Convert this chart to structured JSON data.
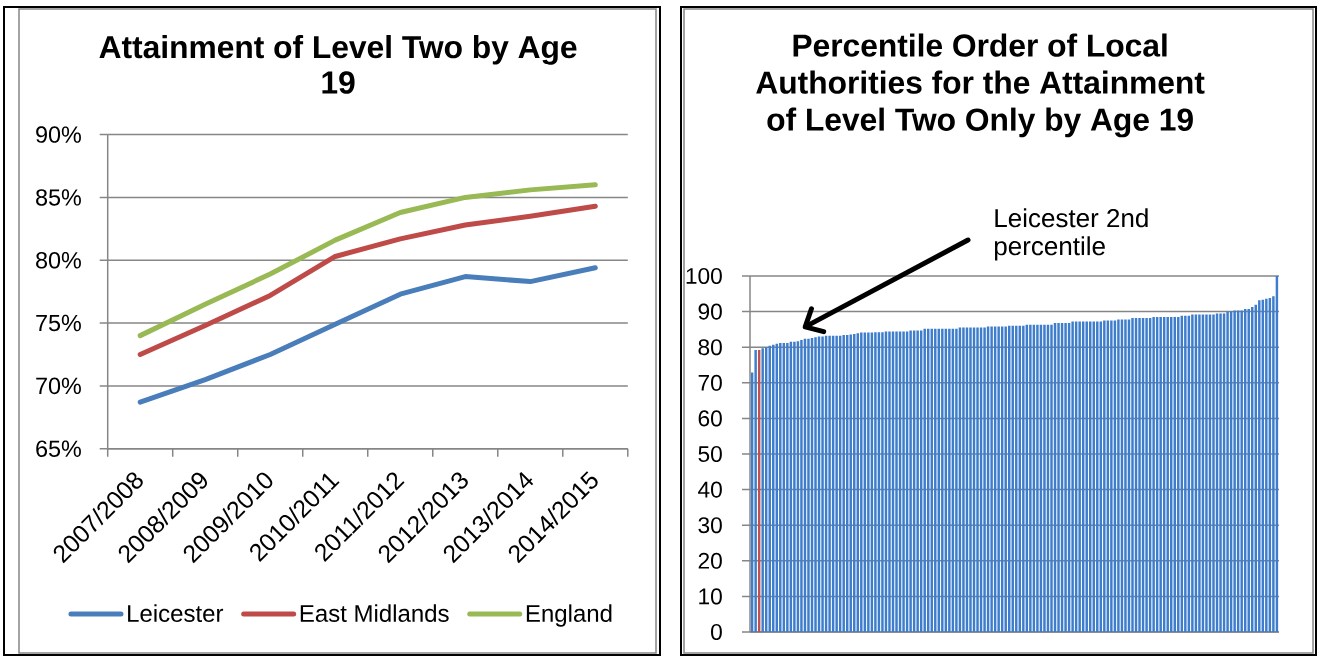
{
  "chart_data": [
    {
      "type": "line",
      "title": "Attainment of Level Two by Age 19",
      "categories": [
        "2007/2008",
        "2008/2009",
        "2009/2010",
        "2010/2011",
        "2011/2012",
        "2012/2013",
        "2013/2014",
        "2014/2015"
      ],
      "series": [
        {
          "name": "Leicester",
          "color": "#4a7ebb",
          "values": [
            68.7,
            70.5,
            72.5,
            74.9,
            77.3,
            78.7,
            78.3,
            79.4
          ]
        },
        {
          "name": "East Midlands",
          "color": "#be4b48",
          "values": [
            72.5,
            74.8,
            77.2,
            80.3,
            81.7,
            82.8,
            83.5,
            84.3
          ]
        },
        {
          "name": "England",
          "color": "#98b954",
          "values": [
            74.0,
            76.5,
            78.9,
            81.6,
            83.8,
            85.0,
            85.6,
            86.0
          ]
        }
      ],
      "ylim": [
        65,
        90
      ],
      "yticks": [
        {
          "value": 65,
          "label": "65%"
        },
        {
          "value": 70,
          "label": "70%"
        },
        {
          "value": 75,
          "label": "75%"
        },
        {
          "value": 80,
          "label": "80%"
        },
        {
          "value": 85,
          "label": "85%"
        },
        {
          "value": 90,
          "label": "90%"
        }
      ],
      "grid": "y",
      "legend": "bottom",
      "marker": "none",
      "line_style": "solid"
    },
    {
      "type": "bar",
      "title": "Percentile Order of Local Authorities for the Attainment of Level Two Only by Age 19",
      "categories": [
        null,
        null,
        null,
        null,
        null,
        null,
        null,
        null,
        null,
        null,
        null,
        null,
        null,
        null,
        null,
        null,
        null,
        null,
        null,
        null,
        null,
        null,
        null,
        null,
        null,
        null,
        null,
        null,
        null,
        null,
        null,
        null,
        null,
        null,
        null,
        null,
        null,
        null,
        null,
        null,
        null,
        null,
        null,
        null,
        null,
        null,
        null,
        null,
        null,
        null,
        null,
        null,
        null,
        null,
        null,
        null,
        null,
        null,
        null,
        null,
        null,
        null,
        null,
        null,
        null,
        null,
        null,
        null,
        null,
        null,
        null,
        null,
        null,
        null,
        null,
        null,
        null,
        null,
        null,
        null,
        null,
        null,
        null,
        null,
        null,
        null,
        null,
        null,
        null,
        null,
        null,
        null,
        null,
        null,
        null,
        null,
        null,
        null,
        null,
        null,
        null,
        null,
        null,
        null,
        null,
        null,
        null,
        null,
        null,
        null,
        null,
        null,
        null,
        null,
        null,
        null,
        null,
        null,
        null,
        null,
        null,
        null,
        null,
        null,
        null,
        null,
        null,
        null,
        null,
        null,
        null,
        null,
        null,
        null,
        null,
        null,
        null,
        null,
        null,
        null,
        null,
        null,
        null,
        null,
        null,
        null,
        null,
        null,
        null,
        null
      ],
      "values": [
        72.9,
        79.2,
        79.2,
        79.7,
        80.0,
        80.4,
        80.7,
        81.0,
        81.2,
        81.2,
        81.2,
        81.5,
        81.5,
        81.7,
        82.0,
        82.4,
        82.4,
        82.6,
        82.8,
        83.0,
        83.0,
        83.2,
        83.2,
        83.2,
        83.2,
        83.2,
        83.4,
        83.4,
        83.6,
        83.7,
        83.9,
        84.1,
        84.1,
        84.1,
        84.1,
        84.2,
        84.2,
        84.2,
        84.4,
        84.4,
        84.4,
        84.4,
        84.4,
        84.4,
        84.4,
        84.7,
        84.7,
        84.7,
        84.7,
        85.2,
        85.2,
        85.2,
        85.2,
        85.2,
        85.2,
        85.2,
        85.2,
        85.2,
        85.2,
        85.5,
        85.5,
        85.5,
        85.5,
        85.5,
        85.5,
        85.5,
        85.5,
        85.8,
        85.8,
        85.8,
        85.8,
        85.8,
        85.8,
        86.0,
        86.0,
        86.0,
        86.0,
        86.0,
        86.3,
        86.3,
        86.3,
        86.3,
        86.3,
        86.3,
        86.3,
        86.3,
        86.8,
        86.8,
        86.8,
        86.8,
        86.8,
        87.2,
        87.2,
        87.2,
        87.2,
        87.2,
        87.2,
        87.2,
        87.2,
        87.2,
        87.5,
        87.5,
        87.5,
        87.5,
        87.8,
        87.8,
        87.8,
        87.8,
        88.2,
        88.2,
        88.2,
        88.2,
        88.2,
        88.2,
        88.5,
        88.5,
        88.5,
        88.5,
        88.5,
        88.5,
        88.5,
        88.5,
        88.8,
        88.8,
        88.8,
        89.2,
        89.2,
        89.2,
        89.2,
        89.2,
        89.2,
        89.2,
        89.5,
        89.5,
        89.5,
        90.0,
        90.0,
        90.3,
        90.3,
        90.3,
        90.7,
        90.7,
        91.3,
        91.9,
        93.2,
        93.3,
        93.6,
        93.8,
        94.3,
        100
      ],
      "colors": [
        "#3d7dcc",
        "#3d7dcc",
        "#c0504d",
        "#3d7dcc",
        "#3d7dcc",
        "#3d7dcc",
        "#3d7dcc",
        "#3d7dcc",
        "#3d7dcc",
        "#3d7dcc",
        "#3d7dcc",
        "#3d7dcc",
        "#3d7dcc",
        "#3d7dcc",
        "#3d7dcc",
        "#3d7dcc",
        "#3d7dcc",
        "#3d7dcc",
        "#3d7dcc",
        "#3d7dcc",
        "#3d7dcc",
        "#3d7dcc",
        "#3d7dcc",
        "#3d7dcc",
        "#3d7dcc",
        "#3d7dcc",
        "#3d7dcc",
        "#3d7dcc",
        "#3d7dcc",
        "#3d7dcc",
        "#3d7dcc",
        "#3d7dcc",
        "#3d7dcc",
        "#3d7dcc",
        "#3d7dcc",
        "#3d7dcc",
        "#3d7dcc",
        "#3d7dcc",
        "#3d7dcc",
        "#3d7dcc",
        "#3d7dcc",
        "#3d7dcc",
        "#3d7dcc",
        "#3d7dcc",
        "#3d7dcc",
        "#3d7dcc",
        "#3d7dcc",
        "#3d7dcc",
        "#3d7dcc",
        "#3d7dcc",
        "#3d7dcc",
        "#3d7dcc",
        "#3d7dcc",
        "#3d7dcc",
        "#3d7dcc",
        "#3d7dcc",
        "#3d7dcc",
        "#3d7dcc",
        "#3d7dcc",
        "#3d7dcc",
        "#3d7dcc",
        "#3d7dcc",
        "#3d7dcc",
        "#3d7dcc",
        "#3d7dcc",
        "#3d7dcc",
        "#3d7dcc",
        "#3d7dcc",
        "#3d7dcc",
        "#3d7dcc",
        "#3d7dcc",
        "#3d7dcc",
        "#3d7dcc",
        "#3d7dcc",
        "#3d7dcc",
        "#3d7dcc",
        "#3d7dcc",
        "#3d7dcc",
        "#3d7dcc",
        "#3d7dcc",
        "#3d7dcc",
        "#3d7dcc",
        "#3d7dcc",
        "#3d7dcc",
        "#3d7dcc",
        "#3d7dcc",
        "#3d7dcc",
        "#3d7dcc",
        "#3d7dcc",
        "#3d7dcc",
        "#3d7dcc",
        "#3d7dcc",
        "#3d7dcc",
        "#3d7dcc",
        "#3d7dcc",
        "#3d7dcc",
        "#3d7dcc",
        "#3d7dcc",
        "#3d7dcc",
        "#3d7dcc",
        "#3d7dcc",
        "#3d7dcc",
        "#3d7dcc",
        "#3d7dcc",
        "#3d7dcc",
        "#3d7dcc",
        "#3d7dcc",
        "#3d7dcc",
        "#3d7dcc",
        "#3d7dcc",
        "#3d7dcc",
        "#3d7dcc",
        "#3d7dcc",
        "#3d7dcc",
        "#3d7dcc",
        "#3d7dcc",
        "#3d7dcc",
        "#3d7dcc",
        "#3d7dcc",
        "#3d7dcc",
        "#3d7dcc",
        "#3d7dcc",
        "#3d7dcc",
        "#3d7dcc",
        "#3d7dcc",
        "#3d7dcc",
        "#3d7dcc",
        "#3d7dcc",
        "#3d7dcc",
        "#3d7dcc",
        "#3d7dcc",
        "#3d7dcc",
        "#3d7dcc",
        "#3d7dcc",
        "#3d7dcc",
        "#3d7dcc",
        "#3d7dcc",
        "#3d7dcc",
        "#3d7dcc",
        "#3d7dcc",
        "#3d7dcc",
        "#3d7dcc",
        "#3d7dcc",
        "#3d7dcc",
        "#3d7dcc",
        "#3d7dcc",
        "#3d7dcc",
        "#3d7dcc",
        "#3d7dcc",
        "#3d7dcc"
      ],
      "ylim": [
        0,
        100
      ],
      "yticks": [
        0,
        10,
        20,
        30,
        40,
        50,
        60,
        70,
        80,
        90,
        100
      ],
      "grid": "y",
      "annotations": [
        "Leicester 2nd percentile"
      ]
    }
  ]
}
